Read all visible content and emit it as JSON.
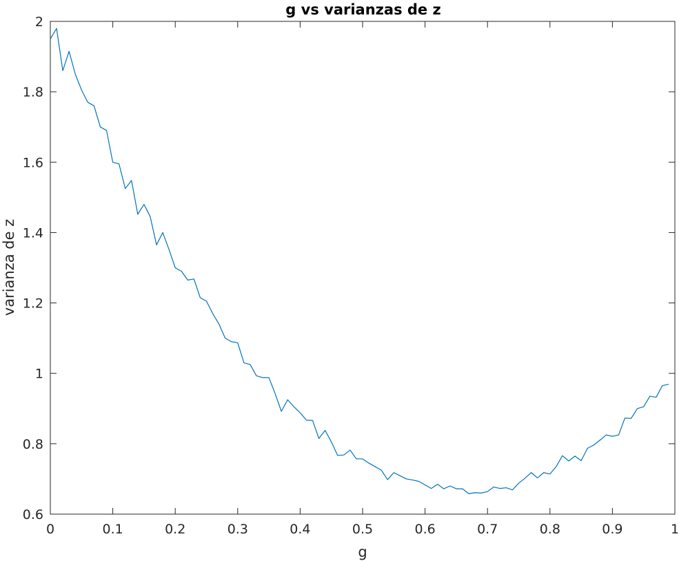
{
  "chart_data": {
    "type": "line",
    "title": "g vs varianzas de z",
    "xlabel": "g",
    "ylabel": "varianza de z",
    "xlim": [
      0,
      1
    ],
    "ylim": [
      0.6,
      2
    ],
    "grid": false,
    "line_color": "#0072bd",
    "x_ticks": [
      "0",
      "0.1",
      "0.2",
      "0.3",
      "0.4",
      "0.5",
      "0.6",
      "0.7",
      "0.8",
      "0.9",
      "1"
    ],
    "y_ticks": [
      "0.6",
      "0.8",
      "1",
      "1.2",
      "1.4",
      "1.6",
      "1.8",
      "2"
    ],
    "series": [
      {
        "x": [
          0,
          0.01,
          0.02,
          0.03,
          0.04,
          0.05,
          0.06,
          0.07,
          0.08,
          0.09,
          0.1,
          0.11,
          0.12,
          0.13,
          0.14,
          0.15,
          0.16,
          0.17,
          0.18,
          0.19,
          0.2,
          0.21,
          0.22,
          0.23,
          0.24,
          0.25,
          0.26,
          0.27,
          0.28,
          0.29,
          0.3,
          0.31,
          0.32,
          0.33,
          0.34,
          0.35,
          0.36,
          0.37,
          0.38,
          0.39,
          0.4,
          0.41,
          0.42,
          0.43,
          0.44,
          0.45,
          0.46,
          0.47,
          0.48,
          0.49,
          0.5,
          0.51,
          0.52,
          0.53,
          0.54,
          0.55,
          0.56,
          0.57,
          0.58,
          0.59,
          0.6,
          0.61,
          0.62,
          0.63,
          0.64,
          0.65,
          0.66,
          0.67,
          0.68,
          0.69,
          0.7,
          0.71,
          0.72,
          0.73,
          0.74,
          0.75,
          0.76,
          0.77,
          0.78,
          0.79,
          0.8,
          0.81,
          0.82,
          0.83,
          0.84,
          0.85,
          0.86,
          0.87,
          0.88,
          0.89,
          0.9,
          0.91,
          0.92,
          0.93,
          0.94,
          0.95,
          0.96,
          0.97,
          0.98,
          0.99
        ],
        "values": [
          1.95,
          1.98,
          1.86,
          1.915,
          1.85,
          1.805,
          1.77,
          1.76,
          1.7,
          1.69,
          1.6,
          1.595,
          1.525,
          1.548,
          1.452,
          1.48,
          1.445,
          1.365,
          1.4,
          1.352,
          1.3,
          1.29,
          1.265,
          1.268,
          1.215,
          1.205,
          1.17,
          1.14,
          1.1,
          1.09,
          1.087,
          1.03,
          1.025,
          0.993,
          0.988,
          0.988,
          0.942,
          0.892,
          0.925,
          0.905,
          0.888,
          0.867,
          0.866,
          0.815,
          0.838,
          0.805,
          0.767,
          0.768,
          0.782,
          0.757,
          0.757,
          0.745,
          0.735,
          0.725,
          0.698,
          0.718,
          0.709,
          0.7,
          0.697,
          0.693,
          0.683,
          0.673,
          0.685,
          0.672,
          0.68,
          0.672,
          0.672,
          0.658,
          0.661,
          0.66,
          0.664,
          0.677,
          0.673,
          0.675,
          0.669,
          0.688,
          0.702,
          0.718,
          0.703,
          0.718,
          0.714,
          0.735,
          0.766,
          0.751,
          0.765,
          0.752,
          0.787,
          0.796,
          0.81,
          0.825,
          0.821,
          0.825,
          0.873,
          0.872,
          0.9,
          0.905,
          0.935,
          0.932,
          0.965,
          0.969
        ]
      }
    ]
  }
}
